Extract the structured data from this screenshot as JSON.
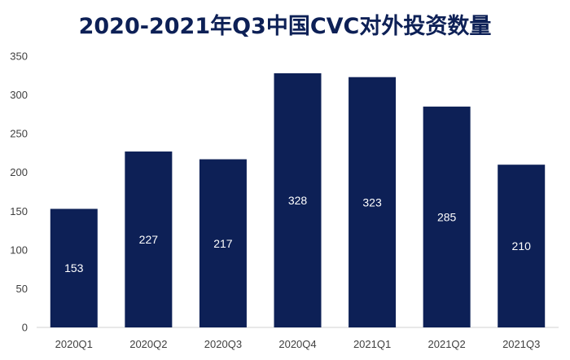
{
  "chart_data": {
    "type": "bar",
    "title": "2020-2021年Q3中国CVC对外投资数量",
    "categories": [
      "2020Q1",
      "2020Q2",
      "2020Q3",
      "2020Q4",
      "2021Q1",
      "2021Q2",
      "2021Q3"
    ],
    "values": [
      153,
      227,
      217,
      328,
      323,
      285,
      210
    ],
    "yticks": [
      "0",
      "50",
      "100",
      "150",
      "200",
      "250",
      "300",
      "350"
    ],
    "ylim": [
      0,
      350
    ],
    "xlabel": "",
    "ylabel": "",
    "grid": false,
    "legend": "none",
    "bar_color": "#0d2056",
    "title_color": "#0d2056"
  }
}
